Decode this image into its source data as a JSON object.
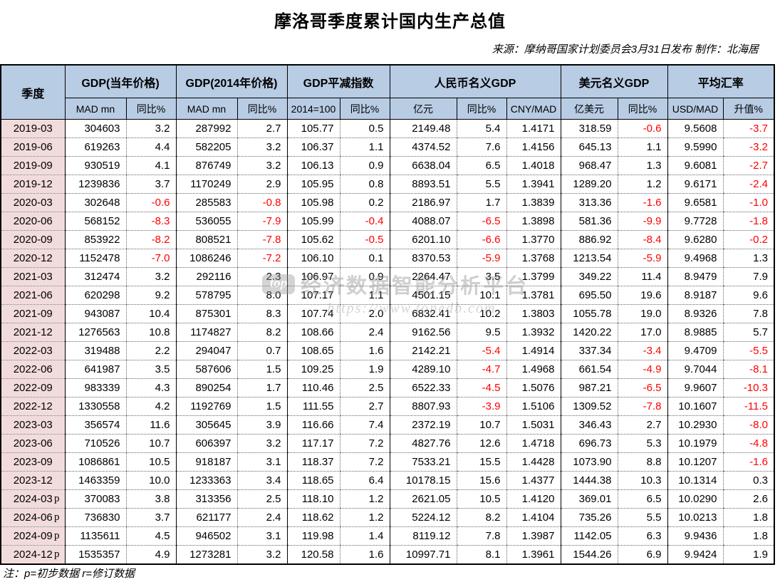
{
  "title": "摩洛哥季度累计国内生产总值",
  "source_note": "来源：摩纳哥国家计划委员会3月31日发布  制作：北海居",
  "footer_note": "注：p=初步数据 r=修订数据",
  "watermark": {
    "logo": "top",
    "text": "经济数据智能分析平台",
    "url": "https://www.topedb.com"
  },
  "colors": {
    "header_bg": "#b8cce4",
    "quarter_col_bg": "#f2dcdb",
    "negative_value": "#ff0000",
    "text": "#000000"
  },
  "table": {
    "quarter_header": "季度",
    "groups": [
      {
        "label": "GDP(当年价格)",
        "cols": [
          "MAD mn",
          "同比%"
        ]
      },
      {
        "label": "GDP(2014年价格)",
        "cols": [
          "MAD mn",
          "同比%"
        ]
      },
      {
        "label": "GDP平减指数",
        "cols": [
          "2014=100",
          "同比%"
        ]
      },
      {
        "label": "人民币名义GDP",
        "cols": [
          "亿元",
          "同比%",
          "CNY/MAD"
        ]
      },
      {
        "label": "美元名义GDP",
        "cols": [
          "亿美元",
          "同比%"
        ]
      },
      {
        "label": "平均汇率",
        "cols": [
          "USD/MAD",
          "升值%"
        ]
      }
    ],
    "rows": [
      {
        "quarter": "2019-03",
        "flag": "",
        "values": [
          "304603",
          "3.2",
          "287992",
          "2.7",
          "105.77",
          "0.5",
          "2149.48",
          "5.4",
          "1.4171",
          "318.59",
          "-0.6",
          "9.5608",
          "-3.7"
        ]
      },
      {
        "quarter": "2019-06",
        "flag": "",
        "values": [
          "619263",
          "4.4",
          "582205",
          "3.2",
          "106.37",
          "1.1",
          "4374.52",
          "7.6",
          "1.4156",
          "645.13",
          "1.1",
          "9.5990",
          "-3.2"
        ]
      },
      {
        "quarter": "2019-09",
        "flag": "",
        "values": [
          "930519",
          "4.1",
          "876749",
          "3.2",
          "106.13",
          "0.9",
          "6638.04",
          "6.5",
          "1.4018",
          "968.47",
          "1.3",
          "9.6081",
          "-2.7"
        ]
      },
      {
        "quarter": "2019-12",
        "flag": "",
        "values": [
          "1239836",
          "3.7",
          "1170249",
          "2.9",
          "105.95",
          "0.8",
          "8893.51",
          "5.5",
          "1.3941",
          "1289.20",
          "1.2",
          "9.6171",
          "-2.4"
        ]
      },
      {
        "quarter": "2020-03",
        "flag": "",
        "values": [
          "302648",
          "-0.6",
          "285583",
          "-0.8",
          "105.98",
          "0.2",
          "2186.97",
          "1.7",
          "1.3839",
          "313.36",
          "-1.6",
          "9.6581",
          "-1.0"
        ]
      },
      {
        "quarter": "2020-06",
        "flag": "",
        "values": [
          "568152",
          "-8.3",
          "536055",
          "-7.9",
          "105.99",
          "-0.4",
          "4088.07",
          "-6.5",
          "1.3898",
          "581.36",
          "-9.9",
          "9.7728",
          "-1.8"
        ]
      },
      {
        "quarter": "2020-09",
        "flag": "",
        "values": [
          "853922",
          "-8.2",
          "808521",
          "-7.8",
          "105.62",
          "-0.5",
          "6201.10",
          "-6.6",
          "1.3770",
          "886.92",
          "-8.4",
          "9.6280",
          "-0.2"
        ]
      },
      {
        "quarter": "2020-12",
        "flag": "",
        "values": [
          "1152478",
          "-7.0",
          "1086246",
          "-7.2",
          "106.10",
          "0.1",
          "8370.53",
          "-5.9",
          "1.3768",
          "1213.54",
          "-5.9",
          "9.4968",
          "1.3"
        ]
      },
      {
        "quarter": "2021-03",
        "flag": "",
        "values": [
          "312474",
          "3.2",
          "292116",
          "2.3",
          "106.97",
          "0.9",
          "2264.47",
          "3.5",
          "1.3799",
          "349.22",
          "11.4",
          "8.9479",
          "7.9"
        ]
      },
      {
        "quarter": "2021-06",
        "flag": "",
        "values": [
          "620298",
          "9.2",
          "578795",
          "8.0",
          "107.17",
          "1.1",
          "4501.15",
          "10.1",
          "1.3781",
          "695.50",
          "19.6",
          "8.9187",
          "9.6"
        ]
      },
      {
        "quarter": "2021-09",
        "flag": "",
        "values": [
          "943087",
          "10.4",
          "875301",
          "8.3",
          "107.74",
          "2.0",
          "6832.41",
          "10.2",
          "1.3803",
          "1055.78",
          "19.0",
          "8.9326",
          "7.8"
        ]
      },
      {
        "quarter": "2021-12",
        "flag": "",
        "values": [
          "1276563",
          "10.8",
          "1174827",
          "8.2",
          "108.66",
          "2.4",
          "9162.56",
          "9.5",
          "1.3932",
          "1420.22",
          "17.0",
          "8.9885",
          "5.7"
        ]
      },
      {
        "quarter": "2022-03",
        "flag": "",
        "values": [
          "319488",
          "2.2",
          "294047",
          "0.7",
          "108.65",
          "1.6",
          "2142.21",
          "-5.4",
          "1.4914",
          "337.34",
          "-3.4",
          "9.4709",
          "-5.5"
        ]
      },
      {
        "quarter": "2022-06",
        "flag": "",
        "values": [
          "641987",
          "3.5",
          "587606",
          "1.5",
          "109.25",
          "1.9",
          "4289.10",
          "-4.7",
          "1.4968",
          "661.54",
          "-4.9",
          "9.7044",
          "-8.1"
        ]
      },
      {
        "quarter": "2022-09",
        "flag": "",
        "values": [
          "983339",
          "4.3",
          "890254",
          "1.7",
          "110.46",
          "2.5",
          "6522.33",
          "-4.5",
          "1.5076",
          "987.21",
          "-6.5",
          "9.9607",
          "-10.3"
        ]
      },
      {
        "quarter": "2022-12",
        "flag": "",
        "values": [
          "1330558",
          "4.2",
          "1192769",
          "1.5",
          "111.55",
          "2.7",
          "8807.93",
          "-3.9",
          "1.5106",
          "1309.52",
          "-7.8",
          "10.1607",
          "-11.5"
        ]
      },
      {
        "quarter": "2023-03",
        "flag": "",
        "values": [
          "356574",
          "11.6",
          "305645",
          "3.9",
          "116.66",
          "7.4",
          "2372.19",
          "10.7",
          "1.5031",
          "346.43",
          "2.7",
          "10.2930",
          "-8.0"
        ]
      },
      {
        "quarter": "2023-06",
        "flag": "",
        "values": [
          "710526",
          "10.7",
          "606397",
          "3.2",
          "117.17",
          "7.2",
          "4827.76",
          "12.6",
          "1.4718",
          "696.73",
          "5.3",
          "10.1979",
          "-4.8"
        ]
      },
      {
        "quarter": "2023-09",
        "flag": "",
        "values": [
          "1086861",
          "10.5",
          "918187",
          "3.1",
          "118.37",
          "7.2",
          "7533.21",
          "15.5",
          "1.4428",
          "1073.90",
          "8.8",
          "10.1207",
          "-1.6"
        ]
      },
      {
        "quarter": "2023-12",
        "flag": "",
        "values": [
          "1463359",
          "10.0",
          "1233363",
          "3.4",
          "118.65",
          "6.4",
          "10178.15",
          "15.6",
          "1.4377",
          "1444.38",
          "10.3",
          "10.1314",
          "0.3"
        ]
      },
      {
        "quarter": "2024-03",
        "flag": "p",
        "values": [
          "370083",
          "3.8",
          "313356",
          "2.5",
          "118.10",
          "1.2",
          "2621.05",
          "10.5",
          "1.4120",
          "369.01",
          "6.5",
          "10.0290",
          "2.6"
        ]
      },
      {
        "quarter": "2024-06",
        "flag": "p",
        "values": [
          "736830",
          "3.7",
          "621177",
          "2.4",
          "118.62",
          "1.2",
          "5224.12",
          "8.2",
          "1.4104",
          "735.26",
          "5.5",
          "10.0213",
          "1.8"
        ]
      },
      {
        "quarter": "2024-09",
        "flag": "p",
        "values": [
          "1135611",
          "4.5",
          "946502",
          "3.1",
          "119.98",
          "1.4",
          "8119.12",
          "7.8",
          "1.3987",
          "1142.05",
          "6.3",
          "9.9436",
          "1.8"
        ]
      },
      {
        "quarter": "2024-12",
        "flag": "p",
        "values": [
          "1535357",
          "4.9",
          "1273281",
          "3.2",
          "120.58",
          "1.6",
          "10997.71",
          "8.1",
          "1.3961",
          "1544.26",
          "6.9",
          "9.9424",
          "1.9"
        ]
      }
    ]
  }
}
